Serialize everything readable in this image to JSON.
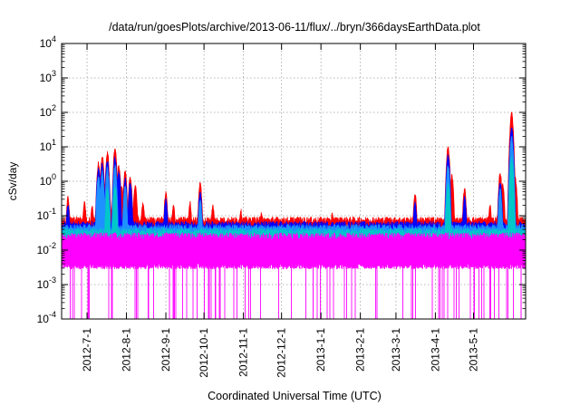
{
  "chart_data": {
    "type": "line",
    "title": "/data/run/goesPlots/archive/2013-06-11/flux/../bryn/366daysEarthData.plot",
    "xlabel": "Coordinated Universal Time (UTC)",
    "ylabel": "cSv/day",
    "y_scale": "log",
    "ylim": [
      0.0001,
      10000
    ],
    "xlim": [
      "2012-06-11",
      "2013-06-11"
    ],
    "grid": true,
    "legend": "none",
    "x_ticks": [
      "2012-7-1",
      "2012-8-1",
      "2012-9-1",
      "2012-10-1",
      "2012-11-1",
      "2012-12-1",
      "2013-1-1",
      "2013-2-1",
      "2013-3-1",
      "2013-4-1",
      "2013-5-1"
    ],
    "y_ticks": [
      {
        "base": "10",
        "exp": "-4",
        "value": 0.0001
      },
      {
        "base": "10",
        "exp": "-3",
        "value": 0.001
      },
      {
        "base": "10",
        "exp": "-2",
        "value": 0.01
      },
      {
        "base": "10",
        "exp": "-1",
        "value": 0.1
      },
      {
        "base": "10",
        "exp": "0",
        "value": 1
      },
      {
        "base": "10",
        "exp": "1",
        "value": 10
      },
      {
        "base": "10",
        "exp": "2",
        "value": 100
      },
      {
        "base": "10",
        "exp": "3",
        "value": 1000
      },
      {
        "base": "10",
        "exp": "4",
        "value": 10000
      }
    ],
    "series": [
      {
        "color": "#ff0000",
        "baseline": 0.075,
        "peaks": [
          [
            "2012-06-16",
            0.35
          ],
          [
            "2012-06-29",
            0.25
          ],
          [
            "2012-07-05",
            0.2
          ],
          [
            "2012-07-10",
            3.5
          ],
          [
            "2012-07-13",
            5.5
          ],
          [
            "2012-07-17",
            7
          ],
          [
            "2012-07-19",
            0.3
          ],
          [
            "2012-07-23",
            9
          ],
          [
            "2012-07-26",
            3
          ],
          [
            "2012-07-28",
            0.8
          ],
          [
            "2012-07-31",
            2
          ],
          [
            "2012-08-04",
            1.5
          ],
          [
            "2012-08-08",
            0.8
          ],
          [
            "2012-08-14",
            0.25
          ],
          [
            "2012-09-01",
            0.5
          ],
          [
            "2012-09-07",
            0.2
          ],
          [
            "2012-09-20",
            0.25
          ],
          [
            "2012-09-28",
            0.9
          ],
          [
            "2012-10-08",
            0.2
          ],
          [
            "2012-10-30",
            0.15
          ],
          [
            "2012-11-15",
            0.13
          ],
          [
            "2013-01-10",
            0.12
          ],
          [
            "2013-03-16",
            0.45
          ],
          [
            "2013-04-11",
            10
          ],
          [
            "2013-04-14",
            1.5
          ],
          [
            "2013-04-24",
            0.6
          ],
          [
            "2013-05-14",
            0.2
          ],
          [
            "2013-05-22",
            1.8
          ],
          [
            "2013-05-24",
            0.9
          ],
          [
            "2013-05-31",
            100
          ],
          [
            "2013-06-03",
            1.2
          ]
        ]
      },
      {
        "color": "#0000ff",
        "baseline": 0.055,
        "peaks": [
          [
            "2012-06-16",
            0.2
          ],
          [
            "2012-07-10",
            2.5
          ],
          [
            "2012-07-13",
            3.5
          ],
          [
            "2012-07-17",
            4
          ],
          [
            "2012-07-23",
            5
          ],
          [
            "2012-07-26",
            2
          ],
          [
            "2012-07-31",
            1.2
          ],
          [
            "2012-08-04",
            0.9
          ],
          [
            "2012-09-01",
            0.3
          ],
          [
            "2012-09-28",
            0.5
          ],
          [
            "2013-03-16",
            0.25
          ],
          [
            "2013-04-11",
            6
          ],
          [
            "2013-04-24",
            0.35
          ],
          [
            "2013-05-22",
            1.0
          ],
          [
            "2013-05-31",
            40
          ]
        ]
      },
      {
        "color": "#1e90ff",
        "baseline": 0.045,
        "peaks": [
          [
            "2012-07-10",
            1.5
          ],
          [
            "2012-07-13",
            2
          ],
          [
            "2012-07-17",
            2.5
          ],
          [
            "2012-07-23",
            3
          ],
          [
            "2012-07-31",
            0.8
          ],
          [
            "2012-09-28",
            0.3
          ],
          [
            "2013-04-11",
            3
          ],
          [
            "2013-05-22",
            0.6
          ],
          [
            "2013-05-31",
            20
          ]
        ]
      },
      {
        "color": "#00c8c8",
        "baseline": 0.035,
        "peaks": [
          [
            "2012-07-17",
            0.6
          ],
          [
            "2012-07-23",
            0.8
          ],
          [
            "2013-04-11",
            0.8
          ],
          [
            "2013-05-31",
            5
          ]
        ]
      },
      {
        "color": "#ff00ff",
        "band_low": 0.0035,
        "band_high": 0.025,
        "dropout_floor": 0.0001,
        "peaks": [
          [
            "2013-05-31",
            1.0
          ]
        ]
      }
    ]
  }
}
